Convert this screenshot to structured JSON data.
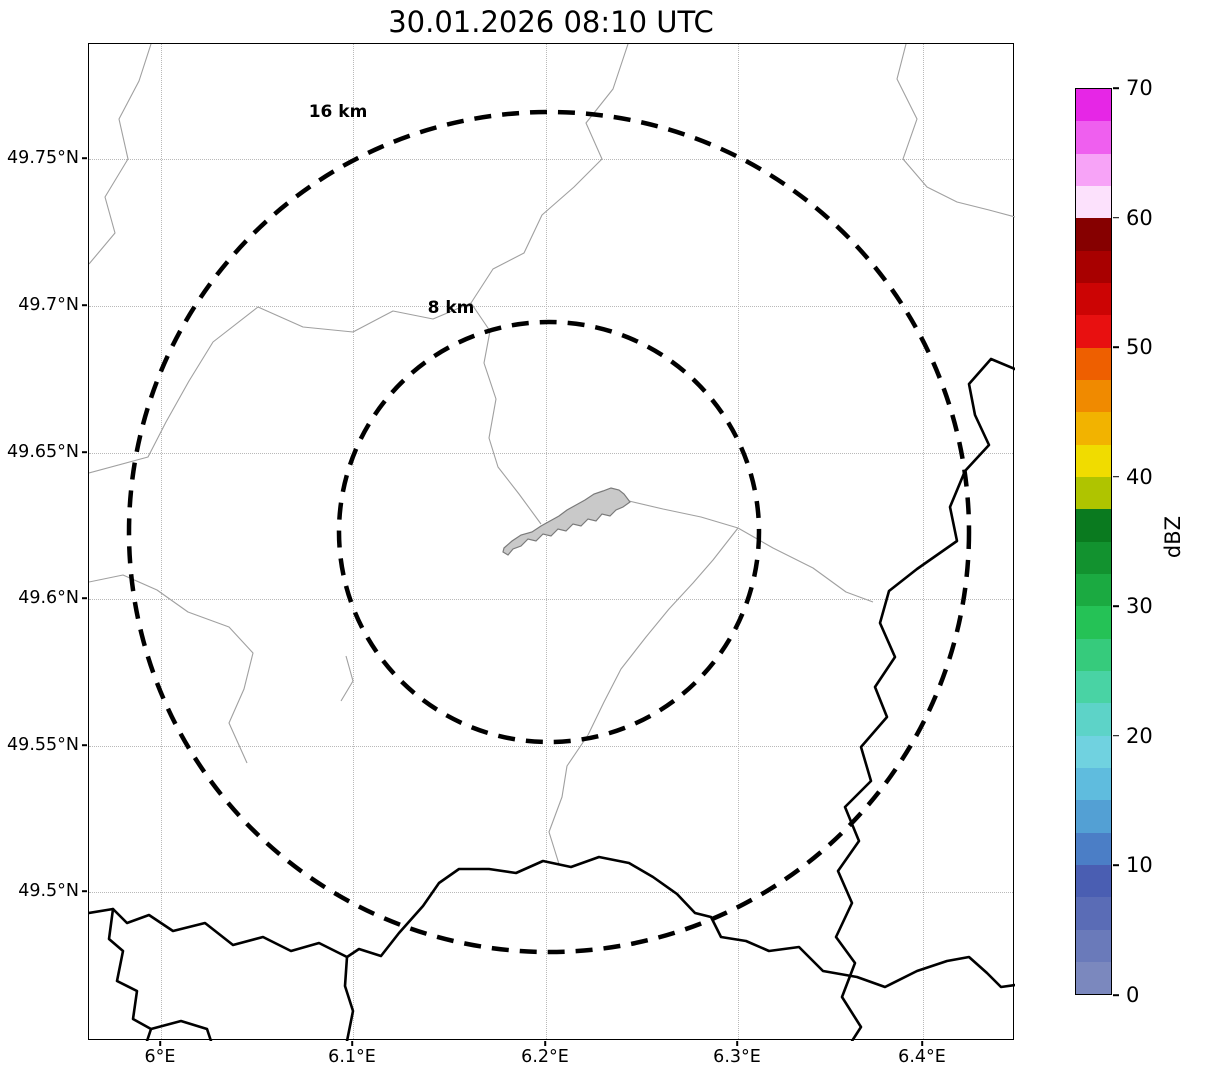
{
  "title": "30.01.2026 08:10 UTC",
  "map": {
    "x_axis": {
      "ticks": [
        {
          "label": "6°E",
          "pos": 72
        },
        {
          "label": "6.1°E",
          "pos": 264
        },
        {
          "label": "6.2°E",
          "pos": 457
        },
        {
          "label": "6.3°E",
          "pos": 649
        },
        {
          "label": "6.4°E",
          "pos": 834
        }
      ]
    },
    "y_axis": {
      "ticks": [
        {
          "label": "49.75°N",
          "pos": 115
        },
        {
          "label": "49.7°N",
          "pos": 262
        },
        {
          "label": "49.65°N",
          "pos": 409
        },
        {
          "label": "49.6°N",
          "pos": 555
        },
        {
          "label": "49.55°N",
          "pos": 702
        },
        {
          "label": "49.5°N",
          "pos": 848
        }
      ]
    },
    "range_rings": [
      {
        "label": "16 km",
        "radius_km": 16,
        "radius_px": 420
      },
      {
        "label": "8 km",
        "radius_km": 8,
        "radius_px": 210
      }
    ]
  },
  "colorbar": {
    "label": "dBZ",
    "min": 0,
    "max": 70,
    "step": 2.5,
    "tick_values": [
      0,
      10,
      20,
      30,
      40,
      50,
      60,
      70
    ],
    "colors_bottom_to_top": [
      "#7B88BE",
      "#6A7ABA",
      "#5A6CB6",
      "#4A5EB2",
      "#4B7EC6",
      "#53A0D4",
      "#5FBCDE",
      "#70D2E0",
      "#5DD3C8",
      "#49D3A4",
      "#36CB7C",
      "#25C256",
      "#1BAA41",
      "#12922F",
      "#0A7A1F",
      "#AFC400",
      "#F0DC00",
      "#F2B300",
      "#F08A00",
      "#EE5F00",
      "#E81010",
      "#CC0404",
      "#A80000",
      "#860000",
      "#FCE1FC",
      "#F7A3F7",
      "#EF5FEF",
      "#E626E6"
    ]
  }
}
